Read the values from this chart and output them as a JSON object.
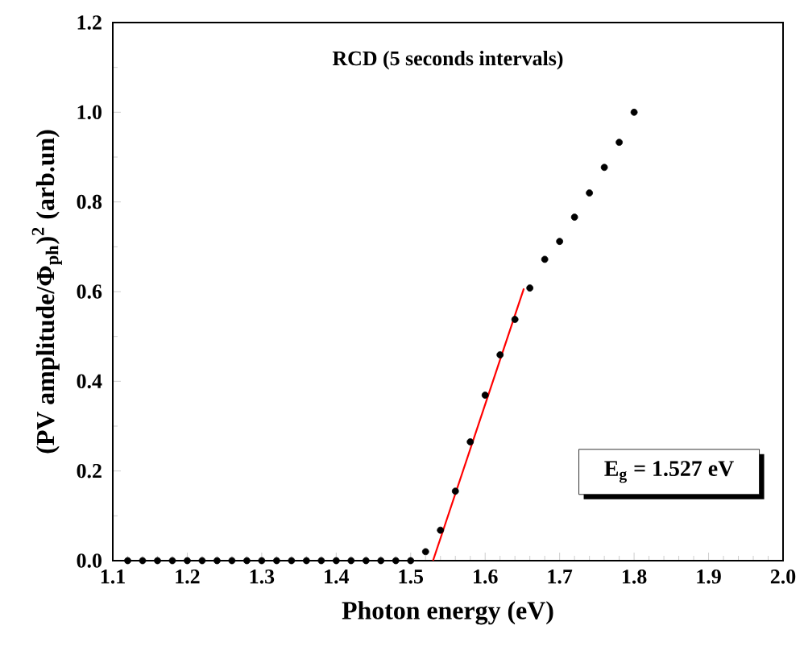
{
  "chart_data": {
    "type": "scatter",
    "xlabel": "Photon energy (eV)",
    "ylabel": "(PV amplitude/Φ$_{ph}$)$^{2}$ (arb.un)",
    "annotations": [
      "RCD (5 seconds intervals)",
      "E$_{g}$ = 1.527 eV"
    ],
    "xlim": [
      1.1,
      2.0
    ],
    "ylim": [
      0,
      1.2
    ],
    "xticks": [
      1.1,
      1.2,
      1.3,
      1.4,
      1.5,
      1.6,
      1.7,
      1.8,
      1.9,
      {
        "value": 2.0,
        "label": "2.0"
      }
    ],
    "yticks": [
      {
        "value": 0,
        "label": "0.0"
      },
      0.2,
      0.4,
      0.6,
      0.8,
      {
        "value": 1.0,
        "label": "1.0"
      },
      1.2
    ],
    "series": [
      {
        "color": "#000000",
        "marker": "circle",
        "x": [
          1.12,
          1.14,
          1.16,
          1.18,
          1.2,
          1.22,
          1.24,
          1.26,
          1.28,
          1.3,
          1.32,
          1.34,
          1.36,
          1.38,
          1.4,
          1.42,
          1.44,
          1.46,
          1.48,
          1.5,
          1.52,
          1.54,
          1.56,
          1.58,
          1.6,
          1.62,
          1.64,
          1.66,
          1.68,
          1.7,
          1.72,
          1.74,
          1.76,
          1.78,
          1.8
        ],
        "values": [
          0,
          0,
          0,
          0,
          0,
          0,
          0,
          0,
          0,
          0,
          0,
          0,
          0,
          0,
          0,
          0,
          0,
          0,
          0,
          0,
          0.02,
          0.068,
          0.155,
          0.265,
          0.369,
          0.459,
          0.538,
          0.608,
          0.672,
          0.712,
          0.766,
          0.82,
          0.877,
          0.933,
          1.0
        ]
      },
      {
        "type": "line",
        "color": "#ff0000",
        "x": [
          1.53,
          1.652
        ],
        "values": [
          0,
          0.607
        ]
      }
    ]
  }
}
